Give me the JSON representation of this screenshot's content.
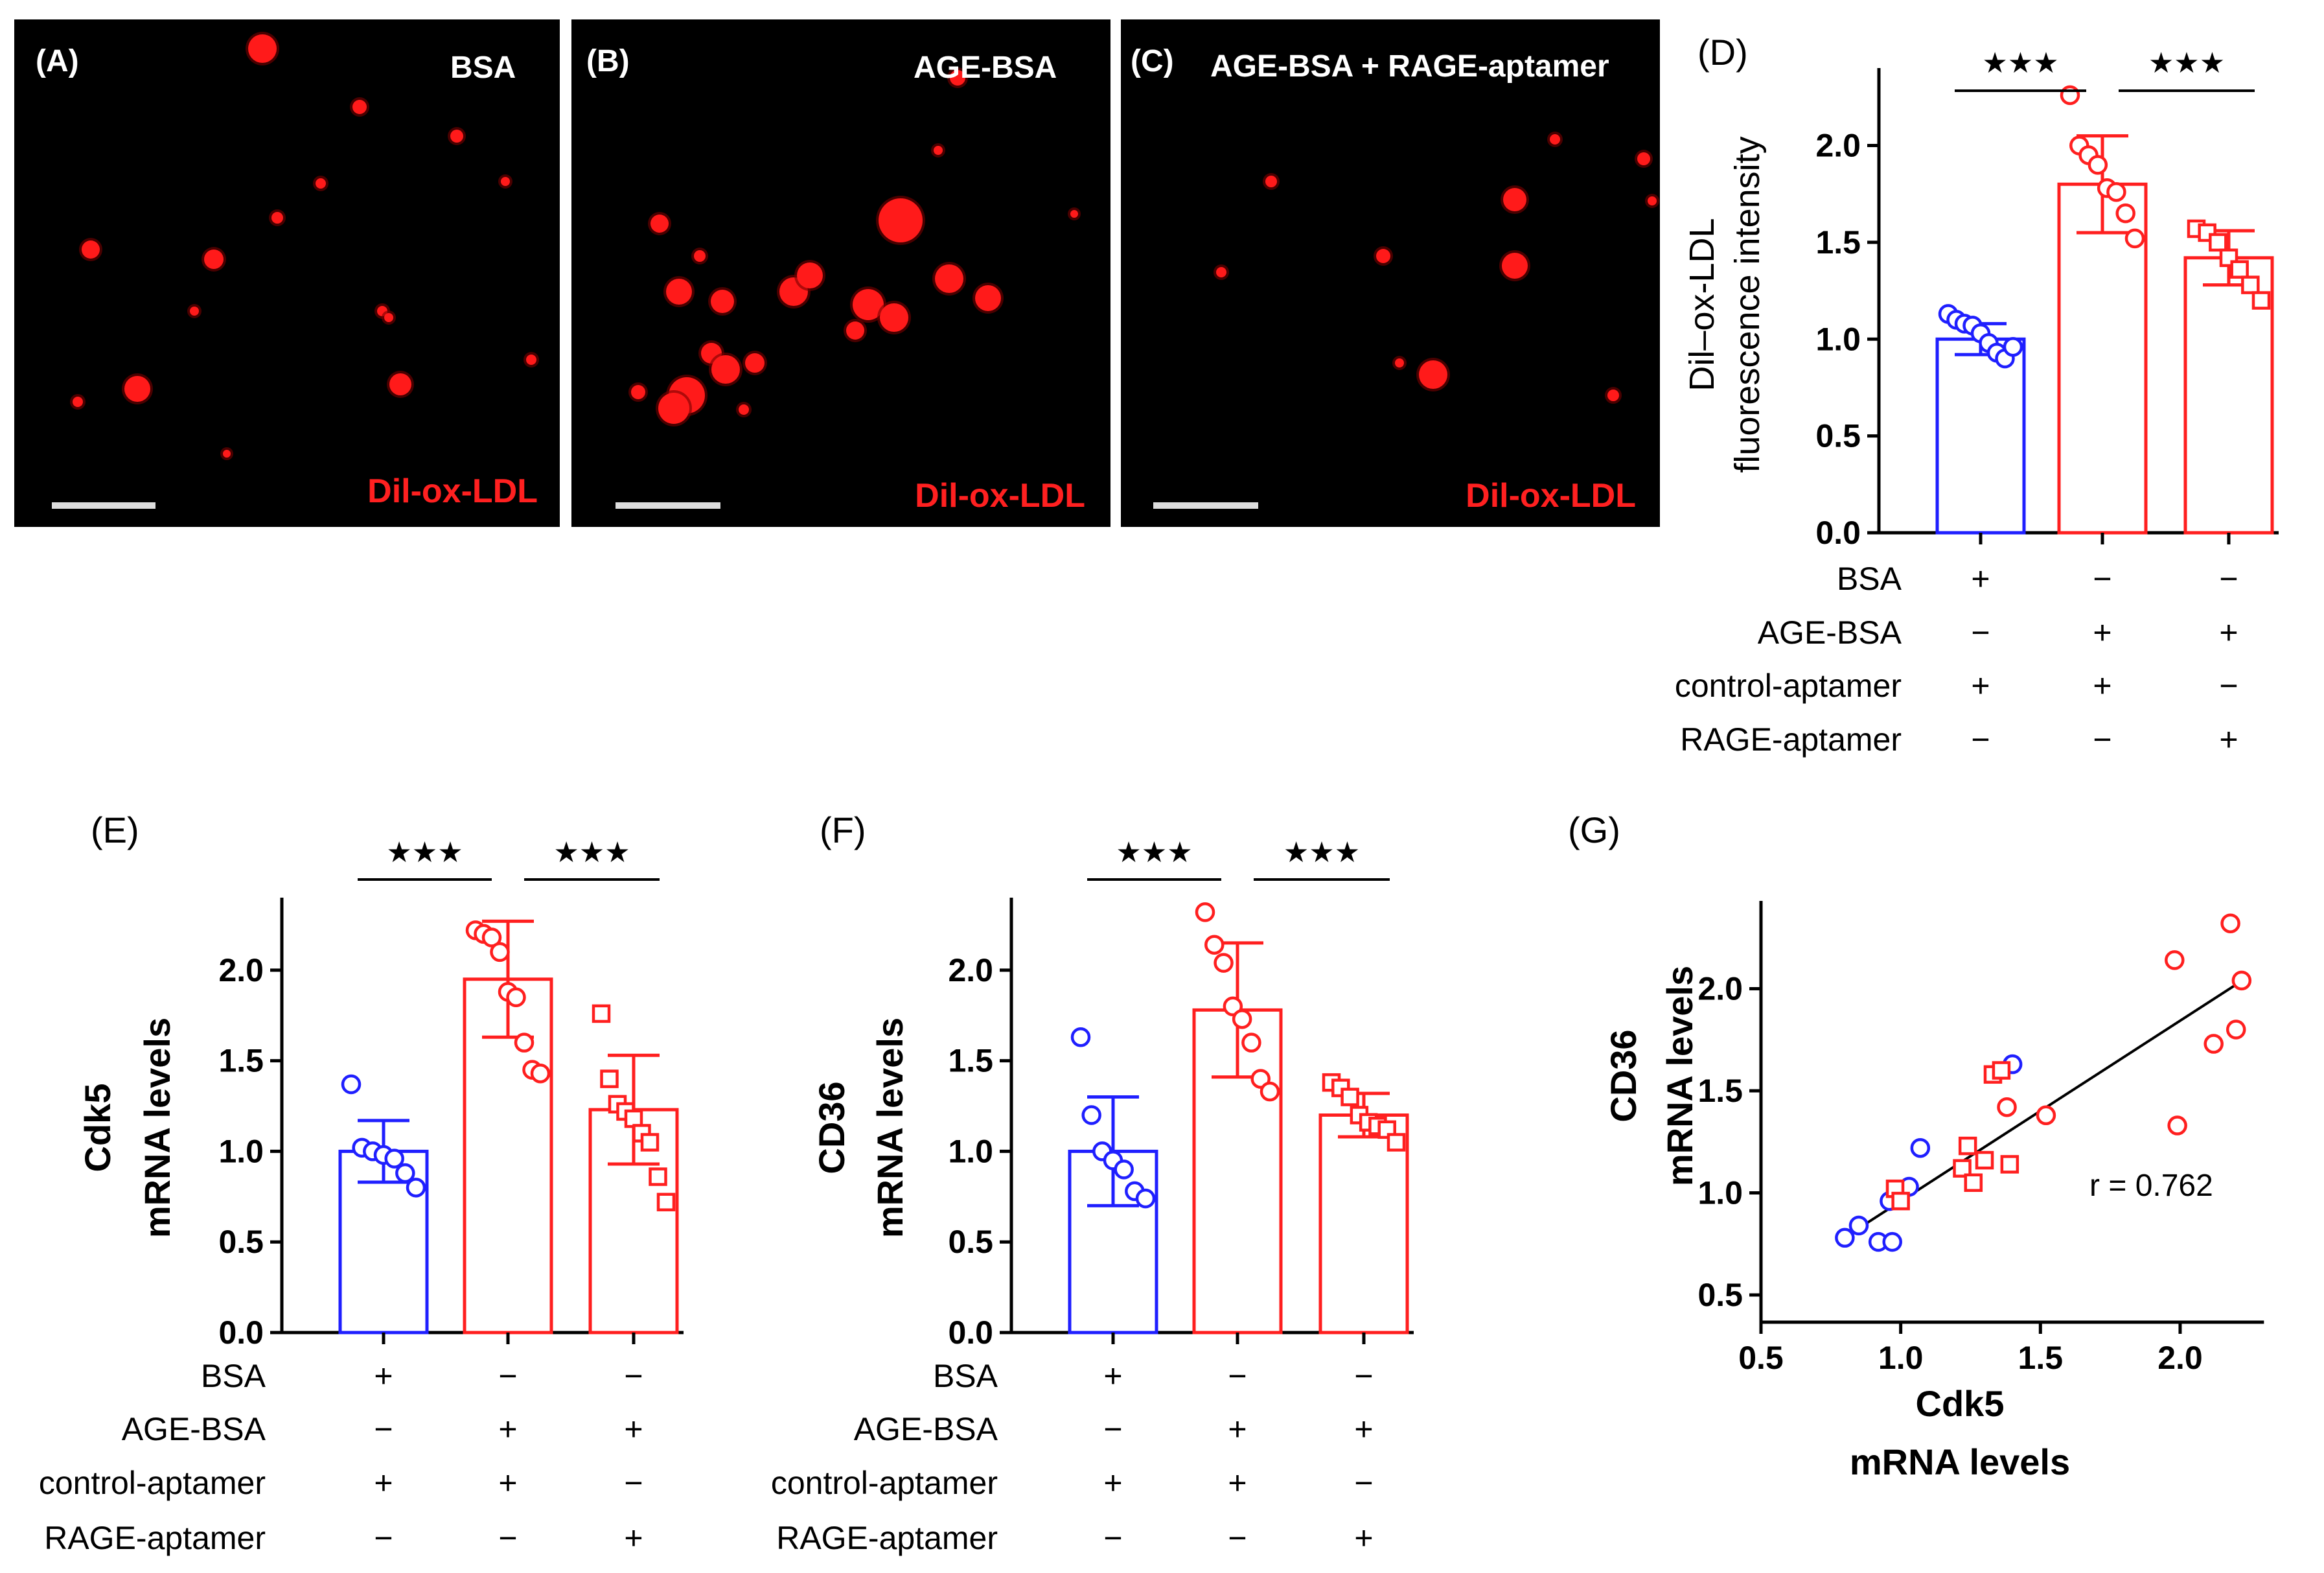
{
  "micrographs": [
    {
      "panel": "(A)",
      "treatment": "BSA",
      "stain": "Dil-ox-LDL"
    },
    {
      "panel": "(B)",
      "treatment": "AGE-BSA",
      "stain": "Dil-ox-LDL"
    },
    {
      "panel": "(C)",
      "treatment": "AGE-BSA + RAGE-aptamer",
      "stain": "Dil-ox-LDL"
    }
  ],
  "colors": {
    "blue": "#1f1fff",
    "red": "#ff1f1f",
    "black": "#000000"
  },
  "condition_rows": [
    "BSA",
    "AGE-BSA",
    "control-aptamer",
    "RAGE-aptamer"
  ],
  "condition_signs": [
    [
      "+",
      "−",
      "−"
    ],
    [
      "−",
      "+",
      "+"
    ],
    [
      "+",
      "+",
      "−"
    ],
    [
      "−",
      "−",
      "+"
    ]
  ],
  "chart_data": [
    {
      "panel": "(D)",
      "type": "bar",
      "ylabel": "Dil–ox-LDL fluorescence intensity",
      "ylabel_lines": [
        "Dil–ox-LDL",
        "fluorescence intensity"
      ],
      "ylim": [
        0,
        2.4
      ],
      "yticks": [
        0.0,
        0.5,
        1.0,
        1.5,
        2.0
      ],
      "ytick_labels": [
        "0.0",
        "0.5",
        "1.0",
        "1.5",
        "2.0"
      ],
      "means": [
        1.0,
        1.8,
        1.42
      ],
      "sd": [
        0.08,
        0.25,
        0.14
      ],
      "bar_colors": [
        "#1f1fff",
        "#ff1f1f",
        "#ff1f1f"
      ],
      "markers": [
        "circle",
        "circle",
        "square"
      ],
      "points": [
        [
          1.13,
          1.1,
          1.08,
          1.07,
          1.03,
          0.98,
          0.93,
          0.9,
          0.96
        ],
        [
          2.26,
          2.0,
          1.95,
          1.9,
          1.78,
          1.76,
          1.65,
          1.52
        ],
        [
          1.57,
          1.55,
          1.5,
          1.42,
          1.36,
          1.28,
          1.2
        ]
      ],
      "significance": [
        {
          "from": 0,
          "to": 1,
          "label": "★★★"
        },
        {
          "from": 1,
          "to": 2,
          "label": "★★★"
        }
      ]
    },
    {
      "panel": "(E)",
      "type": "bar",
      "ylabel": "Cdk5 mRNA levels",
      "ylabel_lines": [
        "Cdk5",
        "mRNA levels"
      ],
      "ylim": [
        0,
        2.4
      ],
      "yticks": [
        0.0,
        0.5,
        1.0,
        1.5,
        2.0
      ],
      "ytick_labels": [
        "0.0",
        "0.5",
        "1.0",
        "1.5",
        "2.0"
      ],
      "means": [
        1.0,
        1.95,
        1.23
      ],
      "sd": [
        0.17,
        0.32,
        0.3
      ],
      "bar_colors": [
        "#1f1fff",
        "#ff1f1f",
        "#ff1f1f"
      ],
      "markers": [
        "circle",
        "circle",
        "square"
      ],
      "points": [
        [
          1.37,
          1.02,
          1.0,
          0.98,
          0.96,
          0.88,
          0.8
        ],
        [
          2.22,
          2.2,
          2.18,
          2.1,
          1.88,
          1.85,
          1.6,
          1.45,
          1.43
        ],
        [
          1.76,
          1.4,
          1.26,
          1.22,
          1.18,
          1.1,
          1.05,
          0.86,
          0.72
        ]
      ],
      "significance": [
        {
          "from": 0,
          "to": 1,
          "label": "★★★"
        },
        {
          "from": 1,
          "to": 2,
          "label": "★★★"
        }
      ]
    },
    {
      "panel": "(F)",
      "type": "bar",
      "ylabel": "CD36 mRNA levels",
      "ylabel_lines": [
        "CD36",
        "mRNA levels"
      ],
      "ylim": [
        0,
        2.4
      ],
      "yticks": [
        0.0,
        0.5,
        1.0,
        1.5,
        2.0
      ],
      "ytick_labels": [
        "0.0",
        "0.5",
        "1.0",
        "1.5",
        "2.0"
      ],
      "means": [
        1.0,
        1.78,
        1.2
      ],
      "sd": [
        0.3,
        0.37,
        0.12
      ],
      "bar_colors": [
        "#1f1fff",
        "#ff1f1f",
        "#ff1f1f"
      ],
      "markers": [
        "circle",
        "circle",
        "square"
      ],
      "points": [
        [
          1.63,
          1.2,
          1.0,
          0.95,
          0.9,
          0.78,
          0.74
        ],
        [
          2.32,
          2.14,
          2.04,
          1.8,
          1.73,
          1.6,
          1.4,
          1.33
        ],
        [
          1.38,
          1.35,
          1.3,
          1.2,
          1.16,
          1.14,
          1.12,
          1.05
        ]
      ],
      "significance": [
        {
          "from": 0,
          "to": 1,
          "label": "★★★"
        },
        {
          "from": 1,
          "to": 2,
          "label": "★★★"
        }
      ]
    },
    {
      "panel": "(G)",
      "type": "scatter",
      "xlabel": "Cdk5 mRNA levels",
      "xlabel_lines": [
        "Cdk5",
        "mRNA levels"
      ],
      "ylabel": "CD36 mRNA levels",
      "ylabel_lines": [
        "CD36",
        "mRNA levels"
      ],
      "xlim": [
        0.5,
        2.3
      ],
      "ylim": [
        0.4,
        2.4
      ],
      "xticks": [
        0.5,
        1.0,
        1.5,
        2.0
      ],
      "xtick_labels": [
        "0.5",
        "1.0",
        "1.5",
        "2.0"
      ],
      "yticks": [
        0.5,
        1.0,
        1.5,
        2.0
      ],
      "ytick_labels": [
        "0.5",
        "1.0",
        "1.5",
        "2.0"
      ],
      "annotation": "r = 0.762",
      "regression": {
        "x": [
          0.82,
          2.2
        ],
        "y": [
          0.8,
          2.02
        ]
      },
      "series": [
        {
          "name": "BSA",
          "color": "#1f1fff",
          "marker": "circle",
          "x": [
            0.8,
            0.85,
            0.92,
            0.96,
            0.97,
            1.03,
            1.07,
            1.4
          ],
          "y": [
            0.78,
            0.84,
            0.76,
            0.96,
            0.76,
            1.03,
            1.22,
            1.63
          ]
        },
        {
          "name": "AGE-BSA",
          "color": "#ff1f1f",
          "marker": "circle",
          "x": [
            1.38,
            1.52,
            1.98,
            1.99,
            2.12,
            2.18,
            2.2,
            2.22
          ],
          "y": [
            1.42,
            1.38,
            2.14,
            1.33,
            1.73,
            2.32,
            1.8,
            2.04
          ]
        },
        {
          "name": "AGE-BSA + RAGE-aptamer",
          "color": "#ff1f1f",
          "marker": "square",
          "x": [
            0.98,
            1.0,
            1.22,
            1.24,
            1.26,
            1.3,
            1.33,
            1.36,
            1.39
          ],
          "y": [
            1.02,
            0.96,
            1.12,
            1.23,
            1.05,
            1.16,
            1.58,
            1.6,
            1.14
          ]
        }
      ]
    }
  ]
}
